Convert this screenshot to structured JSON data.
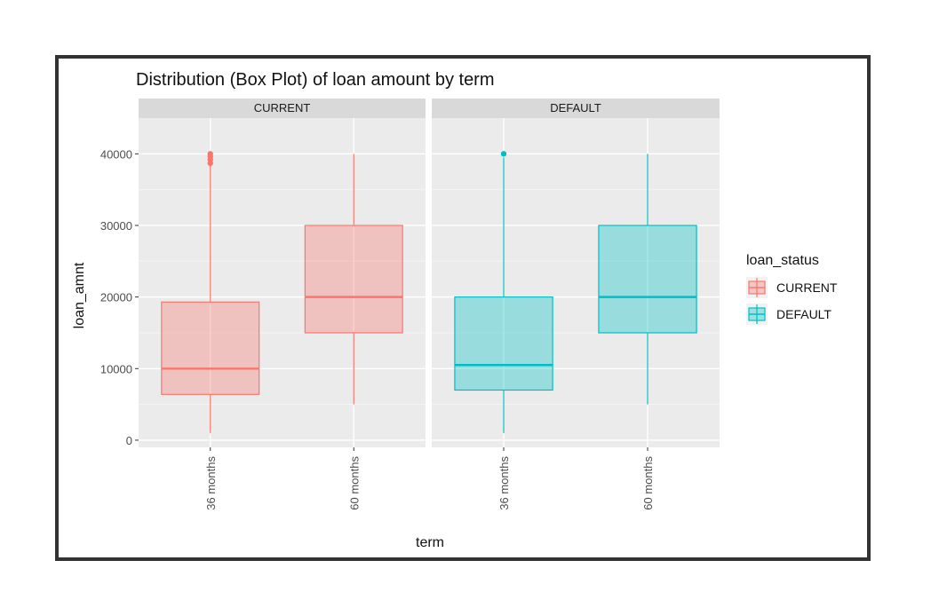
{
  "chart_data": {
    "type": "boxplot",
    "title": "Distribution (Box Plot) of loan amount by term",
    "xlabel": "term",
    "ylabel": "loan_amnt",
    "ylim": [
      -1000,
      45000
    ],
    "yticks": [
      0,
      10000,
      20000,
      30000,
      40000
    ],
    "yticklabels": [
      "0",
      "10000",
      "20000",
      "30000",
      "40000"
    ],
    "categories": [
      "36 months",
      "60 months"
    ],
    "facets": [
      "CURRENT",
      "DEFAULT"
    ],
    "legend": {
      "title": "loan_status",
      "entries": [
        "CURRENT",
        "DEFAULT"
      ],
      "position": "right"
    },
    "colors": {
      "CURRENT": "#F8766D",
      "DEFAULT": "#00BFC4"
    },
    "boxes": [
      {
        "facet": "CURRENT",
        "term": "36 months",
        "lower_whisker": 1000,
        "q1": 6400,
        "median": 10000,
        "q3": 19300,
        "upper_whisker": 38500,
        "outliers": [
          38700,
          39200,
          39600,
          40000
        ]
      },
      {
        "facet": "CURRENT",
        "term": "60 months",
        "lower_whisker": 5000,
        "q1": 15000,
        "median": 20000,
        "q3": 30000,
        "upper_whisker": 40000,
        "outliers": []
      },
      {
        "facet": "DEFAULT",
        "term": "36 months",
        "lower_whisker": 1000,
        "q1": 7000,
        "median": 10500,
        "q3": 20000,
        "upper_whisker": 39500,
        "outliers": [
          40000
        ]
      },
      {
        "facet": "DEFAULT",
        "term": "60 months",
        "lower_whisker": 5000,
        "q1": 15000,
        "median": 20000,
        "q3": 30000,
        "upper_whisker": 40000,
        "outliers": []
      }
    ]
  }
}
